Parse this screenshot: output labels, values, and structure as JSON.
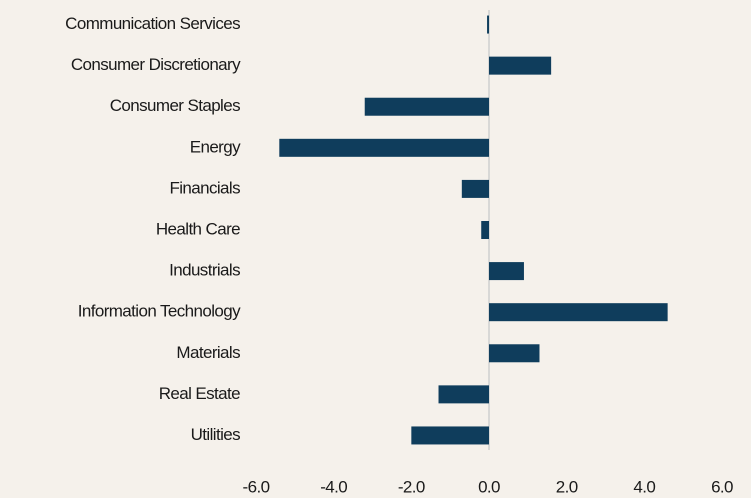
{
  "chart_data": {
    "type": "hbar",
    "categories": [
      "Communication Services",
      "Consumer Discretionary",
      "Consumer Staples",
      "Energy",
      "Financials",
      "Health Care",
      "Industrials",
      "Information Technology",
      "Materials",
      "Real Estate",
      "Utilities"
    ],
    "values": [
      -0.05,
      1.6,
      -3.2,
      -5.4,
      -0.7,
      -0.2,
      0.9,
      4.6,
      1.3,
      -1.3,
      -2.0
    ],
    "color": "#0f3d5c",
    "xlim": [
      -6,
      6
    ],
    "xticks": [
      {
        "value": -6,
        "label": "-6.0"
      },
      {
        "value": -4,
        "label": "-4.0"
      },
      {
        "value": -2,
        "label": "-2.0"
      },
      {
        "value": 0,
        "label": "0.0"
      },
      {
        "value": 2,
        "label": "2.0"
      },
      {
        "value": 4,
        "label": "4.0"
      },
      {
        "value": 6,
        "label": "6.0"
      }
    ],
    "grid": false
  }
}
